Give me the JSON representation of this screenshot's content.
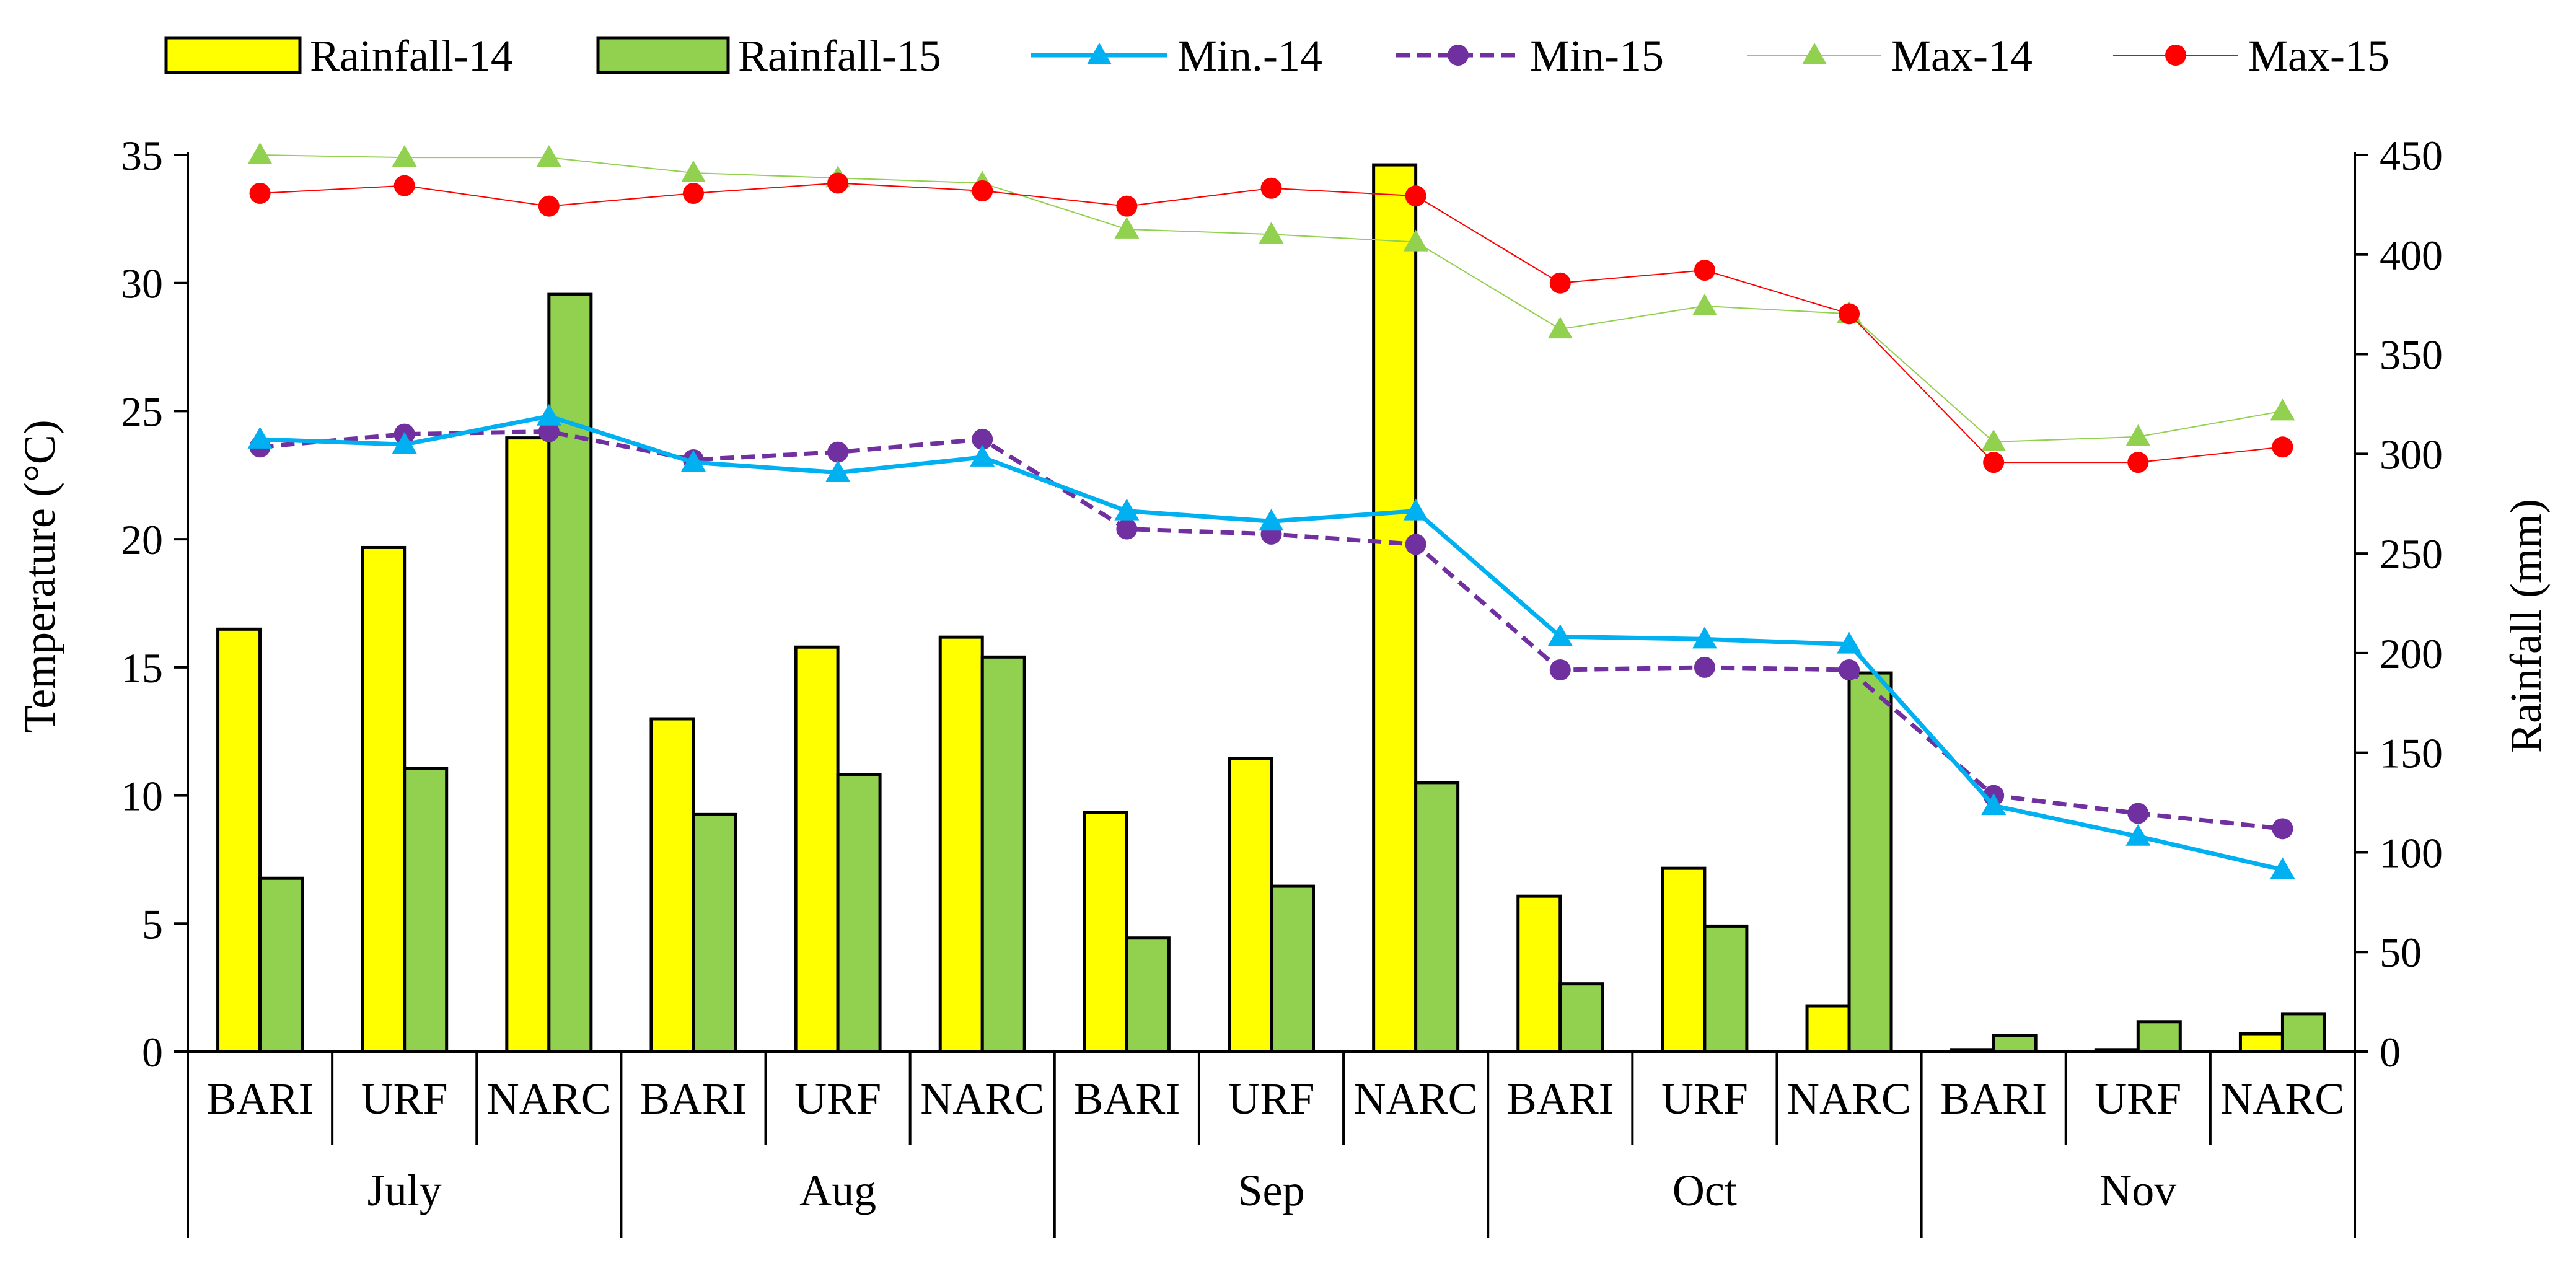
{
  "chart_data": {
    "type": "bar",
    "title": "",
    "categories": [
      "BARI",
      "URF",
      "NARC",
      "BARI",
      "URF",
      "NARC",
      "BARI",
      "URF",
      "NARC",
      "BARI",
      "URF",
      "NARC",
      "BARI",
      "URF",
      "NARC"
    ],
    "groups": [
      {
        "label": "July",
        "categories": [
          "BARI",
          "URF",
          "NARC"
        ]
      },
      {
        "label": "Aug",
        "categories": [
          "BARI",
          "URF",
          "NARC"
        ]
      },
      {
        "label": "Sep",
        "categories": [
          "BARI",
          "URF",
          "NARC"
        ]
      },
      {
        "label": "Oct",
        "categories": [
          "BARI",
          "URF",
          "NARC"
        ]
      },
      {
        "label": "Nov",
        "categories": [
          "BARI",
          "URF",
          "NARC"
        ]
      }
    ],
    "ylabel": "Temperature (°C)",
    "ylim": [
      0,
      35
    ],
    "yticks": [
      "0",
      "5",
      "10",
      "15",
      "20",
      "25",
      "30",
      "35"
    ],
    "y2label": "Rainfall (mm)",
    "y2lim": [
      0,
      450
    ],
    "y2ticks": [
      "0",
      "50",
      "100",
      "150",
      "200",
      "250",
      "300",
      "350",
      "400",
      "450"
    ],
    "legend_position": "top",
    "series": [
      {
        "name": "Rainfall-14",
        "kind": "bar",
        "axis": "right",
        "color": "#ffff00",
        "values": [
          212,
          253,
          308,
          167,
          203,
          208,
          120,
          147,
          445,
          78,
          92,
          23,
          1,
          1,
          9
        ]
      },
      {
        "name": "Rainfall-15",
        "kind": "bar",
        "axis": "right",
        "color": "#92d050",
        "values": [
          87,
          142,
          380,
          119,
          139,
          198,
          57,
          83,
          135,
          34,
          63,
          190,
          8,
          15,
          19
        ]
      },
      {
        "name": "Min.-14",
        "kind": "line",
        "axis": "left",
        "color": "#00b0f0",
        "marker": "triangle",
        "dash": "solid",
        "values": [
          23.9,
          23.7,
          24.8,
          23.0,
          22.6,
          23.2,
          21.1,
          20.7,
          21.1,
          16.2,
          16.1,
          15.9,
          9.6,
          8.4,
          7.1
        ]
      },
      {
        "name": "Min-15",
        "kind": "line",
        "axis": "left",
        "color": "#7030a0",
        "marker": "circle",
        "dash": "dashed",
        "values": [
          23.6,
          24.1,
          24.2,
          23.1,
          23.4,
          23.9,
          20.4,
          20.2,
          19.8,
          14.9,
          15.0,
          14.9,
          10.0,
          9.3,
          8.7
        ]
      },
      {
        "name": "Max-14",
        "kind": "line",
        "axis": "left",
        "color": "#92d050",
        "marker": "triangle",
        "dash": "thin",
        "values": [
          35.0,
          34.9,
          34.9,
          34.3,
          34.1,
          33.9,
          32.1,
          31.9,
          31.6,
          28.2,
          29.1,
          28.8,
          23.8,
          24.0,
          25.0
        ]
      },
      {
        "name": "Max-15",
        "kind": "line",
        "axis": "left",
        "color": "#ff0000",
        "marker": "circle",
        "dash": "thin",
        "values": [
          33.5,
          33.8,
          33.0,
          33.5,
          33.9,
          33.6,
          33.0,
          33.7,
          33.4,
          30.0,
          30.5,
          28.8,
          23.0,
          23.0,
          23.6
        ]
      }
    ]
  }
}
